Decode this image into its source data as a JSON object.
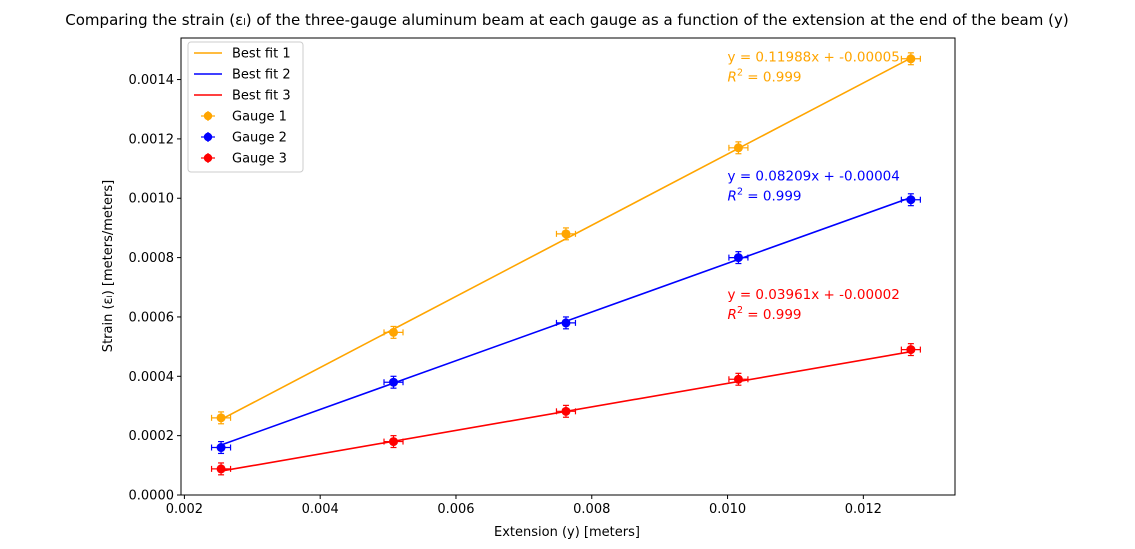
{
  "chart_data": {
    "type": "scatter",
    "title": "Comparing the strain (εₗ) of the three-gauge aluminum beam at each gauge as a function of the extension at the end of the beam (y)",
    "xlabel": "Extension (y) [meters]",
    "ylabel": "Strain (εₗ) [meters/meters]",
    "xlim": [
      0.00195,
      0.01335
    ],
    "ylim": [
      0,
      0.00154
    ],
    "grid": false,
    "legend_position": "top-left",
    "x_ticks": [
      0.002,
      0.004,
      0.006,
      0.008,
      0.01,
      0.012
    ],
    "x_tick_labels": [
      "0.002",
      "0.004",
      "0.006",
      "0.008",
      "0.010",
      "0.012"
    ],
    "y_ticks": [
      0,
      0.0002,
      0.0004,
      0.0006,
      0.0008,
      0.001,
      0.0012,
      0.0014
    ],
    "y_tick_labels": [
      "0.0000",
      "0.0002",
      "0.0004",
      "0.0006",
      "0.0008",
      "0.0010",
      "0.0012",
      "0.0014"
    ],
    "x_error": 0.00014,
    "y_error": 2e-05,
    "series": [
      {
        "name": "Gauge 1",
        "fit_name": "Best fit 1",
        "color": "#ffa500",
        "x": [
          0.00254,
          0.00508,
          0.00762,
          0.01016,
          0.0127
        ],
        "y": [
          0.00026,
          0.000548,
          0.00088,
          0.00117,
          0.00147
        ],
        "fit": {
          "slope": 0.11988,
          "intercept": -5e-05
        },
        "equation": "y = 0.11988x + -0.00005",
        "r2_label": "R",
        "r2_value": " = 0.999"
      },
      {
        "name": "Gauge 2",
        "fit_name": "Best fit 2",
        "color": "#0000ff",
        "x": [
          0.00254,
          0.00508,
          0.00762,
          0.01016,
          0.0127
        ],
        "y": [
          0.00016,
          0.00038,
          0.00058,
          0.0008,
          0.000995
        ],
        "fit": {
          "slope": 0.08209,
          "intercept": -4e-05
        },
        "equation": "y = 0.08209x + -0.00004",
        "r2_label": "R",
        "r2_value": " = 0.999"
      },
      {
        "name": "Gauge 3",
        "fit_name": "Best fit 3",
        "color": "#ff0000",
        "x": [
          0.00254,
          0.00508,
          0.00762,
          0.01016,
          0.0127
        ],
        "y": [
          8.8e-05,
          0.00018,
          0.000282,
          0.00039,
          0.00049
        ],
        "fit": {
          "slope": 0.03961,
          "intercept": -2e-05
        },
        "equation": "y = 0.03961x + -0.00002",
        "r2_label": "R",
        "r2_value": " = 0.999"
      }
    ]
  }
}
